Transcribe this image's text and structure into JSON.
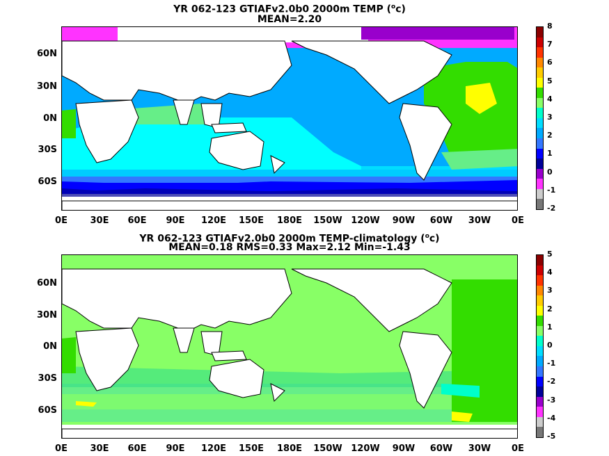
{
  "panel1": {
    "title_prefix": "YR 062-123 GTIAFv2.0b0 2000m TEMP (",
    "title_sup": "o",
    "title_suffix": "c)",
    "stats": "MEAN=2.20",
    "colorbar_labels": [
      "8",
      "7",
      "6",
      "5",
      "4",
      "3",
      "2",
      "1",
      "0",
      "-1",
      "-2"
    ],
    "colorbar_colors": [
      "#8b0000",
      "#cc0000",
      "#ff3300",
      "#ff8800",
      "#ffcc00",
      "#ffff00",
      "#33dd00",
      "#88ff66",
      "#00ffcc",
      "#00ddff",
      "#00aaff",
      "#3377ff",
      "#0000ff",
      "#000099",
      "#9900cc",
      "#ff33ff",
      "#cccccc",
      "#777777"
    ]
  },
  "panel2": {
    "title_prefix": "YR 062-123 GTIAFv2.0b0 2000m TEMP-climatology (",
    "title_sup": "o",
    "title_suffix": "c)",
    "stats": "MEAN=0.18   RMS=0.33   Max=2.12   Min=-1.43",
    "colorbar_labels": [
      "5",
      "4",
      "3",
      "2",
      "1",
      "0",
      "-1",
      "-2",
      "-3",
      "-4",
      "-5"
    ],
    "colorbar_colors": [
      "#8b0000",
      "#cc0000",
      "#ff3300",
      "#ff8800",
      "#ffcc00",
      "#ffff00",
      "#33dd00",
      "#88ff66",
      "#00ffcc",
      "#00ddff",
      "#00aaff",
      "#3377ff",
      "#0000ff",
      "#000099",
      "#9900cc",
      "#ff33ff",
      "#cccccc",
      "#777777"
    ]
  },
  "lat_labels": [
    "60N",
    "30N",
    "0N",
    "30S",
    "60S"
  ],
  "lon_labels": [
    "0E",
    "30E",
    "60E",
    "90E",
    "120E",
    "150E",
    "180E",
    "150W",
    "120W",
    "90W",
    "60W",
    "30W",
    "0E"
  ]
}
